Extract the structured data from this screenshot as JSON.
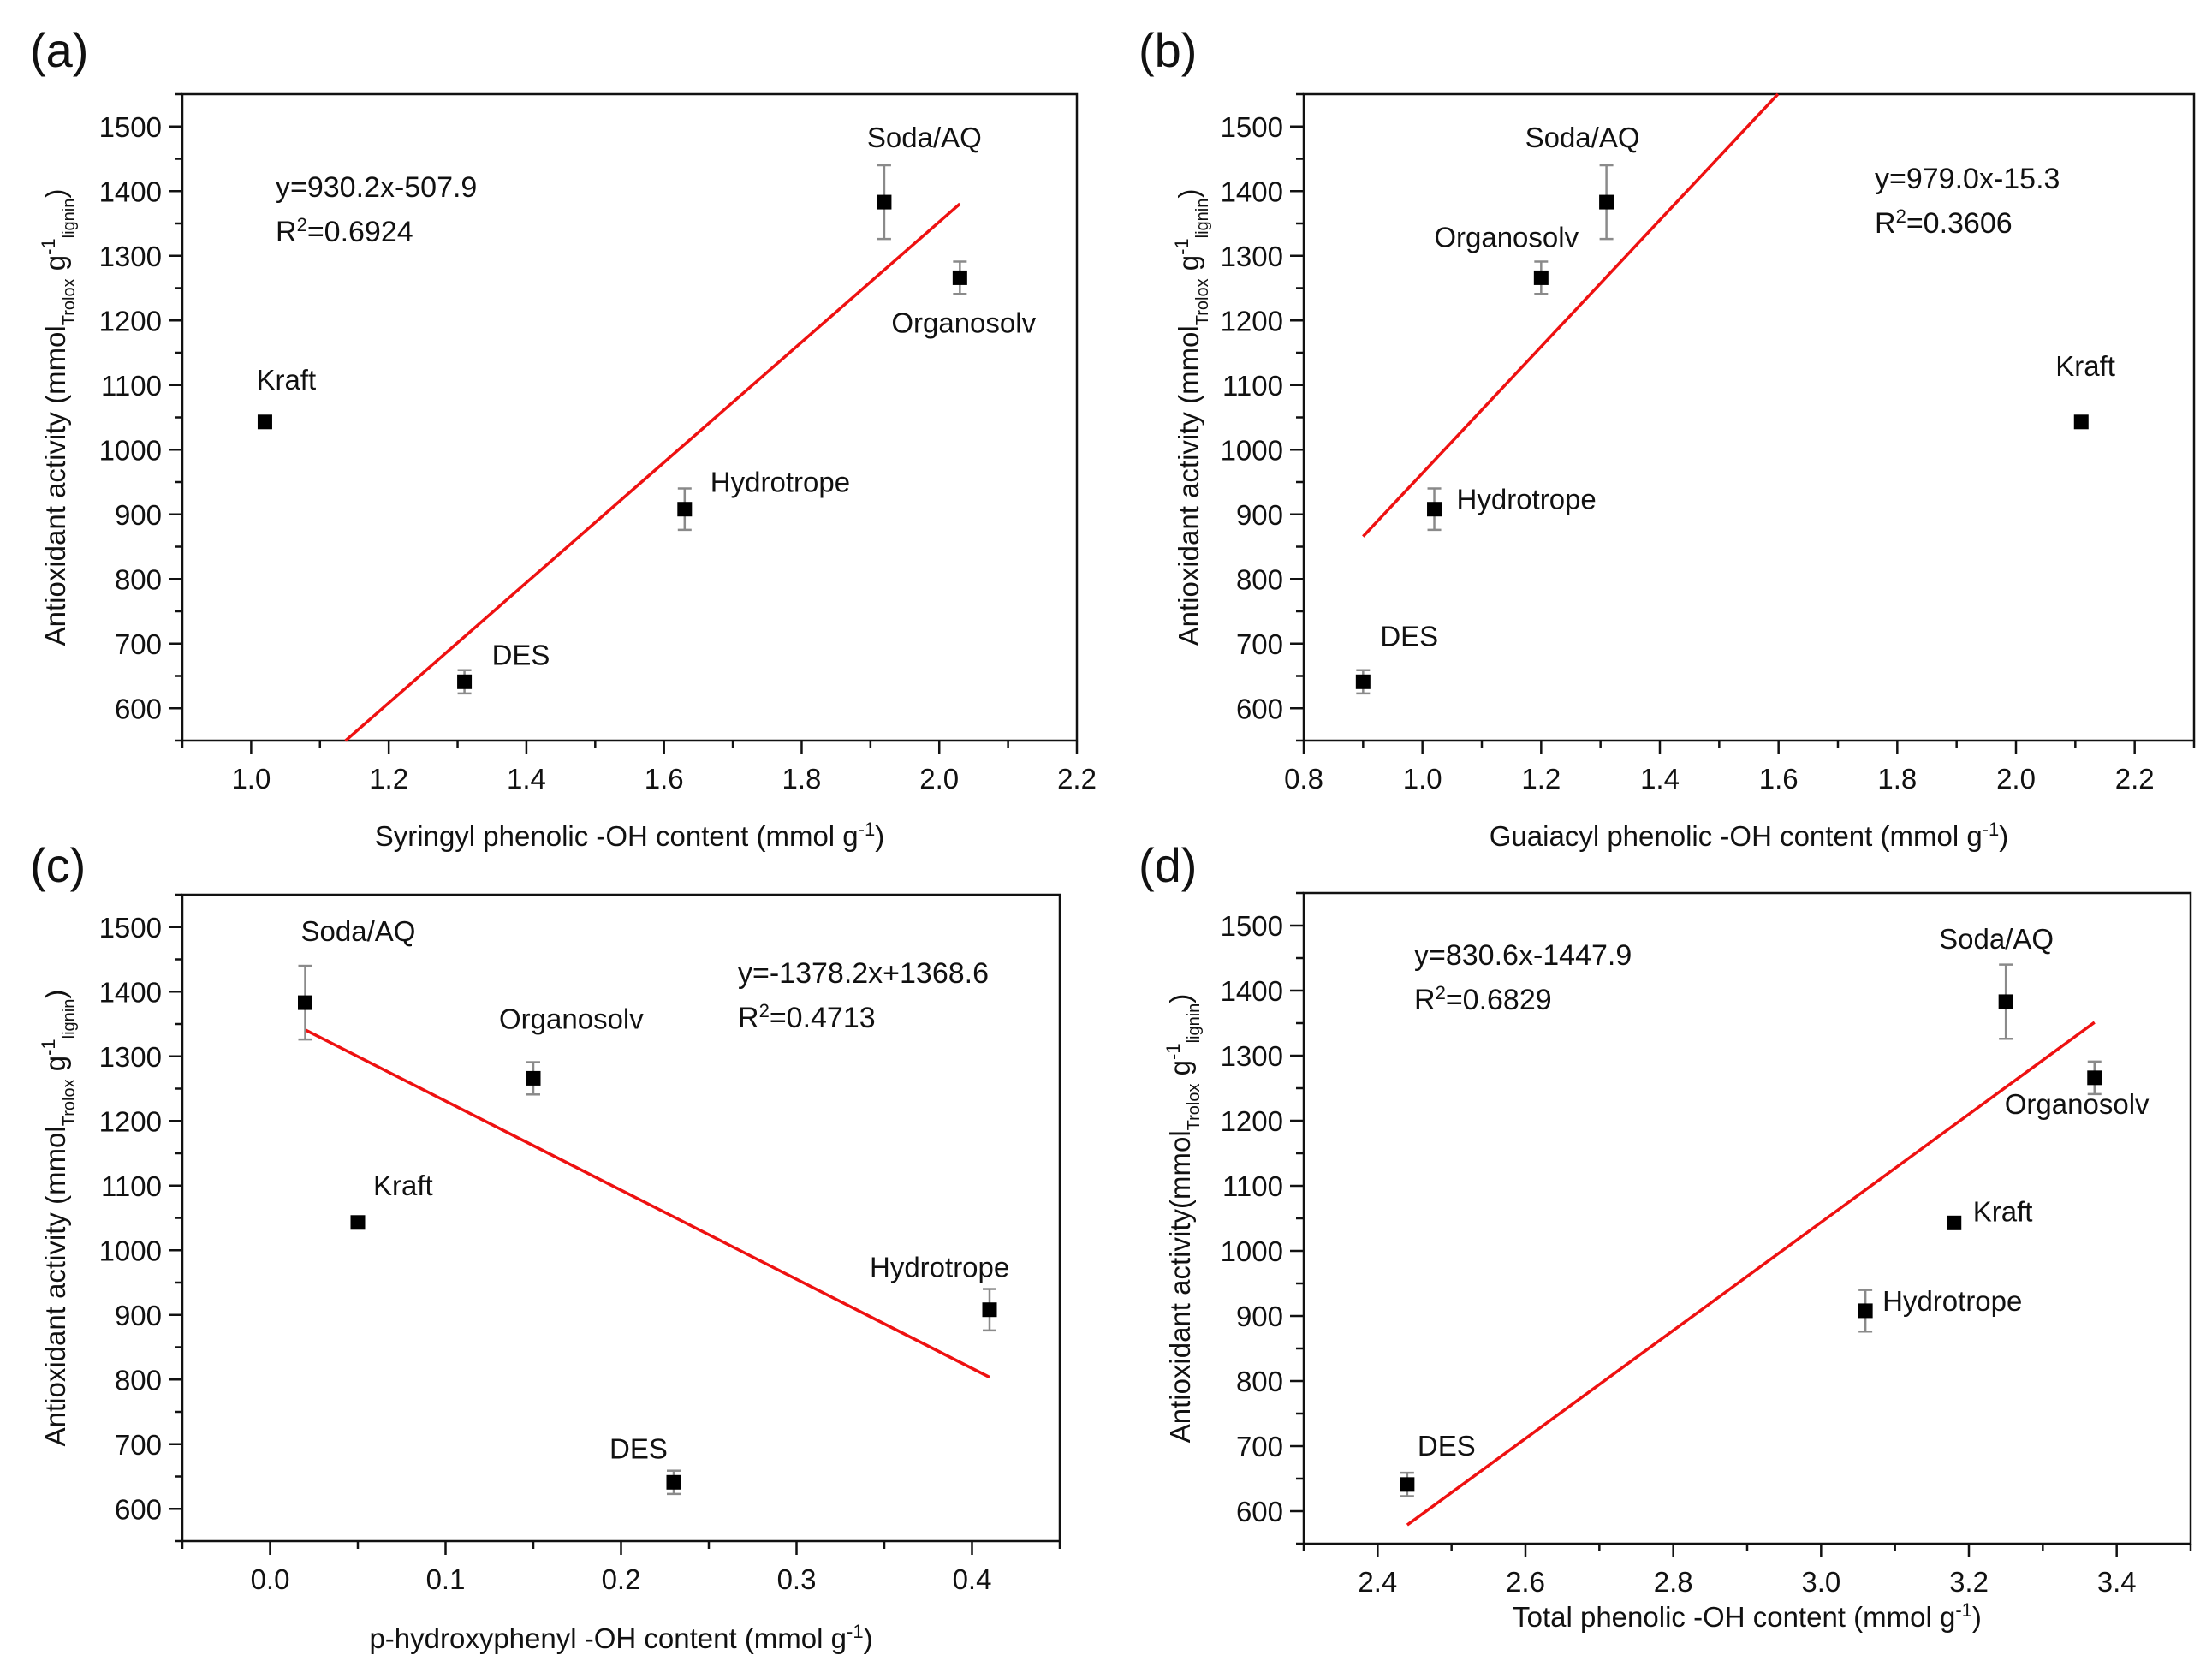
{
  "chart_data": [
    {
      "type": "scatter",
      "panel_label": "(a)",
      "xlabel": "Syringyl phenolic -OH content (mmol g",
      "xlabel_sup": "-1",
      "xlabel_end": ")",
      "ylabel": "Antioxidant activity (mmol",
      "ylabel_sub": "Trolox",
      "ylabel_mid": " g",
      "ylabel_sup": "-1",
      "ylabel_sub2": "lignin",
      "ylabel_end": ")",
      "xlim": [
        0.9,
        2.2
      ],
      "ylim": [
        550,
        1550
      ],
      "xticks": [
        "1.0",
        "1.2",
        "1.4",
        "1.6",
        "1.8",
        "2.0",
        "2.2"
      ],
      "yticks": [
        "600",
        "700",
        "800",
        "900",
        "1000",
        "1100",
        "1200",
        "1300",
        "1400",
        "1500"
      ],
      "points": [
        {
          "label": "Kraft",
          "x": 1.02,
          "y": 1043,
          "err": 0
        },
        {
          "label": "DES",
          "x": 1.31,
          "y": 641,
          "err": 18
        },
        {
          "label": "Hydrotrope",
          "x": 1.63,
          "y": 908,
          "err": 32
        },
        {
          "label": "Soda/AQ",
          "x": 1.92,
          "y": 1383,
          "err": 57
        },
        {
          "label": "Organosolv",
          "x": 2.03,
          "y": 1266,
          "err": 25
        }
      ],
      "fit": {
        "slope": 930.2,
        "intercept": -507.9,
        "x_range": [
          1.137,
          2.03
        ],
        "color": "#ee1111"
      },
      "equation": "y=930.2x-507.9",
      "r2_label": "R",
      "r2_sup": "2",
      "r2_value": "=0.6924"
    },
    {
      "type": "scatter",
      "panel_label": "(b)",
      "xlabel": "Guaiacyl phenolic -OH content (mmol g",
      "xlabel_sup": "-1",
      "xlabel_end": ")",
      "ylabel": "Antioxidant activity (mmol",
      "ylabel_sub": "Trolox",
      "ylabel_mid": " g",
      "ylabel_sup": "-1",
      "ylabel_sub2": "lignin",
      "ylabel_end": ")",
      "xlim": [
        0.8,
        2.3
      ],
      "ylim": [
        550,
        1550
      ],
      "xticks": [
        "0.8",
        "1.0",
        "1.2",
        "1.4",
        "1.6",
        "1.8",
        "2.0",
        "2.2"
      ],
      "yticks": [
        "600",
        "700",
        "800",
        "900",
        "1000",
        "1100",
        "1200",
        "1300",
        "1400",
        "1500"
      ],
      "points": [
        {
          "label": "DES",
          "x": 0.9,
          "y": 641,
          "err": 18
        },
        {
          "label": "Hydrotrope",
          "x": 1.02,
          "y": 908,
          "err": 32
        },
        {
          "label": "Organosolv",
          "x": 1.2,
          "y": 1266,
          "err": 25
        },
        {
          "label": "Soda/AQ",
          "x": 1.31,
          "y": 1383,
          "err": 57
        },
        {
          "label": "Kraft",
          "x": 2.11,
          "y": 1043,
          "err": 0
        }
      ],
      "fit": {
        "slope": 979.0,
        "intercept": -15.3,
        "x_range": [
          0.9,
          1.599
        ],
        "color": "#ee1111"
      },
      "equation": "y=979.0x-15.3",
      "r2_label": "R",
      "r2_sup": "2",
      "r2_value": "=0.3606"
    },
    {
      "type": "scatter",
      "panel_label": "(c)",
      "xlabel": "p-hydroxyphenyl -OH content (mmol g",
      "xlabel_sup": "-1",
      "xlabel_end": ")",
      "ylabel": "Antioxidant activity (mmol",
      "ylabel_sub": "Trolox",
      "ylabel_mid": " g",
      "ylabel_sup": "-1",
      "ylabel_sub2": "lignin",
      "ylabel_end": ")",
      "xlim": [
        -0.05,
        0.45
      ],
      "ylim": [
        550,
        1550
      ],
      "xticks": [
        "0.0",
        "0.1",
        "0.2",
        "0.3",
        "0.4"
      ],
      "yticks": [
        "600",
        "700",
        "800",
        "900",
        "1000",
        "1100",
        "1200",
        "1300",
        "1400",
        "1500"
      ],
      "points": [
        {
          "label": "Soda/AQ",
          "x": 0.02,
          "y": 1383,
          "err": 57
        },
        {
          "label": "Kraft",
          "x": 0.05,
          "y": 1043,
          "err": 0
        },
        {
          "label": "Organosolv",
          "x": 0.15,
          "y": 1266,
          "err": 25
        },
        {
          "label": "DES",
          "x": 0.23,
          "y": 641,
          "err": 18
        },
        {
          "label": "Hydrotrope",
          "x": 0.41,
          "y": 908,
          "err": 32
        }
      ],
      "fit": {
        "slope": -1378.2,
        "intercept": 1368.6,
        "x_range": [
          0.02,
          0.41
        ],
        "color": "#ee1111"
      },
      "equation": "y=-1378.2x+1368.6",
      "r2_label": "R",
      "r2_sup": "2",
      "r2_value": "=0.4713"
    },
    {
      "type": "scatter",
      "panel_label": "(d)",
      "xlabel": "Total phenolic -OH content (mmol g",
      "xlabel_sup": "-1",
      "xlabel_end": ")",
      "ylabel": "Antioxidant activity(mmol",
      "ylabel_sub": "Trolox",
      "ylabel_mid": " g",
      "ylabel_sup": "-1",
      "ylabel_sub2": "lignin",
      "ylabel_end": ")",
      "xlim": [
        2.3,
        3.5
      ],
      "ylim": [
        550,
        1550
      ],
      "xticks": [
        "2.4",
        "2.6",
        "2.8",
        "3.0",
        "3.2",
        "3.4"
      ],
      "yticks": [
        "600",
        "700",
        "800",
        "900",
        "1000",
        "1100",
        "1200",
        "1300",
        "1400",
        "1500"
      ],
      "points": [
        {
          "label": "DES",
          "x": 2.44,
          "y": 641,
          "err": 18
        },
        {
          "label": "Hydrotrope",
          "x": 3.06,
          "y": 908,
          "err": 32
        },
        {
          "label": "Kraft",
          "x": 3.18,
          "y": 1043,
          "err": 0
        },
        {
          "label": "Soda/AQ",
          "x": 3.25,
          "y": 1383,
          "err": 57
        },
        {
          "label": "Organosolv",
          "x": 3.37,
          "y": 1266,
          "err": 25
        }
      ],
      "fit": {
        "slope": 830.6,
        "intercept": -1447.9,
        "x_range": [
          2.44,
          3.37
        ],
        "color": "#ee1111"
      },
      "equation": "y=830.6x-1447.9",
      "r2_label": "R",
      "r2_sup": "2",
      "r2_value": "=0.6829"
    }
  ]
}
